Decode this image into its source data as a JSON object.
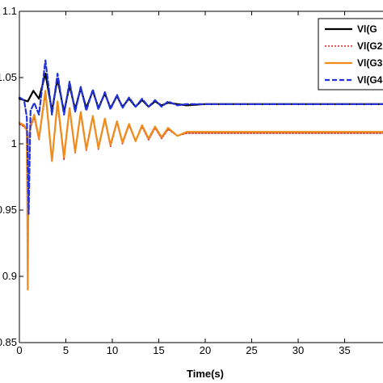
{
  "chart_data": {
    "type": "line",
    "xlabel": "Time(s)",
    "ylabel": "",
    "xlim": [
      0,
      40
    ],
    "ylim": [
      0.85,
      1.1
    ],
    "x_ticks": [
      0,
      5,
      10,
      15,
      20,
      25,
      30,
      35
    ],
    "y_ticks": [
      0.85,
      0.9,
      0.95,
      1,
      1.05,
      1.1
    ],
    "x_tick_labels": [
      "0",
      "5",
      "10",
      "15",
      "20",
      "25",
      "30",
      "35"
    ],
    "y_tick_labels": [
      "0.85",
      "0.9",
      "0.95",
      "1",
      "1.05",
      "1.1"
    ],
    "legend_position": "top-right",
    "grid": false,
    "series": [
      {
        "name": "Vl(G",
        "color": "#000000",
        "dash": "solid",
        "x": [
          0,
          0.5,
          0.9,
          1.2,
          1.5,
          2.1,
          2.8,
          3.5,
          4.1,
          4.8,
          5.4,
          6.0,
          6.6,
          7.2,
          7.9,
          8.5,
          9.2,
          9.8,
          10.5,
          11.1,
          11.8,
          12.5,
          13.2,
          13.9,
          14.6,
          15.3,
          16,
          17,
          18,
          20,
          22,
          25,
          30,
          35,
          40
        ],
        "y": [
          1.034,
          1.033,
          1.032,
          1.036,
          1.04,
          1.034,
          1.053,
          1.025,
          1.049,
          1.024,
          1.044,
          1.026,
          1.042,
          1.027,
          1.04,
          1.027,
          1.038,
          1.027,
          1.036,
          1.028,
          1.034,
          1.028,
          1.033,
          1.028,
          1.032,
          1.029,
          1.031,
          1.03,
          1.029,
          1.03,
          1.03,
          1.03,
          1.03,
          1.03,
          1.03
        ]
      },
      {
        "name": "Vl(G2",
        "color": "#dd2222",
        "dash": "dot",
        "x": [
          0,
          0.5,
          0.8,
          0.9,
          1.0,
          1.2,
          1.6,
          2.1,
          2.8,
          3.5,
          4.1,
          4.8,
          5.4,
          6.0,
          6.6,
          7.2,
          7.9,
          8.5,
          9.2,
          9.8,
          10.5,
          11.1,
          11.8,
          12.5,
          13.2,
          13.9,
          14.6,
          15.3,
          16,
          17,
          18,
          20,
          22,
          25,
          30,
          35,
          40
        ],
        "y": [
          1.015,
          1.013,
          1.01,
          1.0,
          1.005,
          1.012,
          1.02,
          1.003,
          1.038,
          0.988,
          1.03,
          0.988,
          1.026,
          0.993,
          1.023,
          0.995,
          1.02,
          0.996,
          1.018,
          0.998,
          1.016,
          1.0,
          1.014,
          1.002,
          1.013,
          1.003,
          1.012,
          1.004,
          1.011,
          1.006,
          1.008,
          1.008,
          1.008,
          1.008,
          1.008,
          1.008,
          1.008
        ]
      },
      {
        "name": "Vl(G3",
        "color": "#f08c1a",
        "dash": "solid",
        "x": [
          0,
          0.5,
          0.8,
          0.9,
          1.0,
          1.2,
          1.6,
          2.1,
          2.8,
          3.5,
          4.1,
          4.8,
          5.4,
          6.0,
          6.6,
          7.2,
          7.9,
          8.5,
          9.2,
          9.8,
          10.5,
          11.1,
          11.8,
          12.5,
          13.2,
          13.9,
          14.6,
          15.3,
          16,
          17,
          18,
          20,
          22,
          25,
          30,
          35,
          40
        ],
        "y": [
          1.016,
          1.014,
          1.01,
          0.89,
          1.005,
          1.013,
          1.022,
          1.004,
          1.04,
          0.987,
          1.032,
          0.99,
          1.027,
          0.994,
          1.024,
          0.996,
          1.021,
          0.997,
          1.019,
          0.999,
          1.017,
          1.001,
          1.015,
          1.002,
          1.014,
          1.004,
          1.013,
          1.005,
          1.012,
          1.006,
          1.009,
          1.009,
          1.009,
          1.009,
          1.009,
          1.009,
          1.009
        ]
      },
      {
        "name": "Vl(G4",
        "color": "#2233dd",
        "dash": "dash",
        "x": [
          0,
          0.5,
          0.8,
          1.0,
          1.2,
          1.6,
          2.1,
          2.8,
          3.5,
          4.1,
          4.8,
          5.4,
          6.0,
          6.6,
          7.2,
          7.9,
          8.5,
          9.2,
          9.8,
          10.5,
          11.1,
          11.8,
          12.5,
          13.2,
          13.9,
          14.6,
          15.3,
          16,
          17,
          18,
          20,
          22,
          25,
          30,
          35,
          40
        ],
        "y": [
          1.035,
          1.033,
          1.02,
          0.947,
          1.025,
          1.031,
          1.022,
          1.063,
          1.022,
          1.053,
          1.022,
          1.047,
          1.024,
          1.043,
          1.025,
          1.041,
          1.026,
          1.039,
          1.026,
          1.037,
          1.027,
          1.035,
          1.028,
          1.034,
          1.028,
          1.033,
          1.028,
          1.032,
          1.029,
          1.03,
          1.03,
          1.03,
          1.03,
          1.03,
          1.03,
          1.03
        ]
      }
    ]
  }
}
